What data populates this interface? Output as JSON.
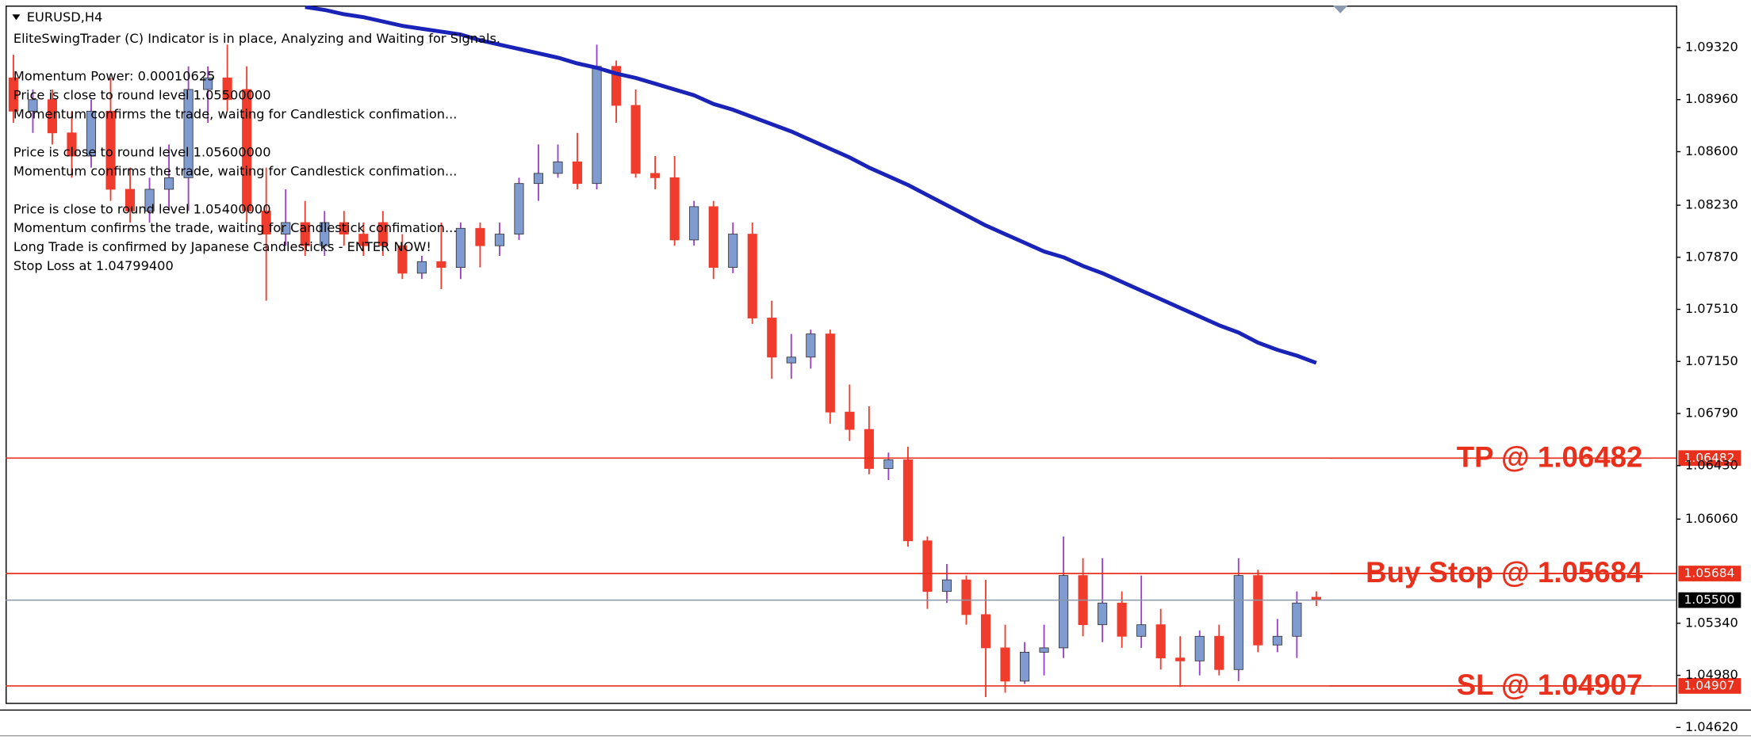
{
  "chart_data": {
    "type": "candlestick",
    "symbol": "EURUSD,H4",
    "comments": [
      [
        "EliteSwingTrader (C) Indicator is in place, Analyzing and Waiting for Signals."
      ],
      [
        "Momentum Power: 0.00010625",
        "Price is close to round level 1.05500000",
        "Momentum confirms the trade, waiting for Candlestick confimation..."
      ],
      [
        "Price is close to round level 1.05600000",
        "Momentum confirms the trade, waiting for Candlestick confimation..."
      ],
      [
        "Price is close to round level 1.05400000",
        "Momentum confirms the trade, waiting for Candlestick confimation...",
        "Long Trade is confirmed by Japanese Candlesticks - ENTER NOW!",
        "Stop Loss at 1.04799400"
      ]
    ],
    "ylim": [
      1.0479,
      1.0961
    ],
    "yticks": [
      {
        "value": 1.0932,
        "label": "1.09320"
      },
      {
        "value": 1.0896,
        "label": "1.08960"
      },
      {
        "value": 1.086,
        "label": "1.08600"
      },
      {
        "value": 1.0823,
        "label": "1.08230"
      },
      {
        "value": 1.0787,
        "label": "1.07870"
      },
      {
        "value": 1.0751,
        "label": "1.07510"
      },
      {
        "value": 1.0715,
        "label": "1.07150"
      },
      {
        "value": 1.0679,
        "label": "1.06790"
      },
      {
        "value": 1.0643,
        "label": "1.06430"
      },
      {
        "value": 1.0606,
        "label": "1.06060"
      },
      {
        "value": 1.0534,
        "label": "1.05340"
      },
      {
        "value": 1.0498,
        "label": "1.04980"
      },
      {
        "value": 1.0462,
        "label": "1.04620"
      }
    ],
    "up_color": "#7f9bd0",
    "down_color": "#f03c2c",
    "open": [
      1.0911,
      1.0888,
      1.0896,
      1.0873,
      1.0857,
      1.0888,
      1.0834,
      1.0819,
      1.0834,
      1.0842,
      1.0903,
      1.0911,
      1.0903,
      1.0819,
      1.0803,
      1.0811,
      1.0795,
      1.0811,
      1.0803,
      1.0811,
      1.0795,
      1.0776,
      1.0784,
      1.078,
      1.0807,
      1.0795,
      1.0803,
      1.0838,
      1.0845,
      1.0853,
      1.0838,
      1.0919,
      1.0892,
      1.0845,
      1.0842,
      1.0799,
      1.0822,
      1.078,
      1.0803,
      1.0745,
      1.0714,
      1.0718,
      1.0734,
      1.068,
      1.0668,
      1.0641,
      1.0647,
      1.0591,
      1.0556,
      1.0564,
      1.054,
      1.0517,
      1.0494,
      1.0514,
      1.0517,
      1.0567,
      1.0533,
      1.0548,
      1.0525,
      1.0533,
      1.051,
      1.0508,
      1.0525,
      1.0502,
      1.0567,
      1.0519,
      1.0525,
      1.0552
    ],
    "high": [
      1.0927,
      1.0903,
      1.0903,
      1.0888,
      1.0896,
      1.0911,
      1.0849,
      1.0842,
      1.0865,
      1.0919,
      1.0919,
      1.0934,
      1.0919,
      1.0849,
      1.0834,
      1.0826,
      1.0819,
      1.0819,
      1.0811,
      1.0819,
      1.0803,
      1.0788,
      1.0811,
      1.0811,
      1.0811,
      1.0811,
      1.0842,
      1.0865,
      1.0865,
      1.0873,
      1.0934,
      1.0923,
      1.0903,
      1.0857,
      1.0857,
      1.0826,
      1.0826,
      1.0811,
      1.0811,
      1.0757,
      1.0734,
      1.0737,
      1.0737,
      1.0699,
      1.0684,
      1.0652,
      1.0656,
      1.0594,
      1.0575,
      1.0567,
      1.0564,
      1.0533,
      1.0521,
      1.0533,
      1.0594,
      1.0579,
      1.0579,
      1.0556,
      1.0567,
      1.0544,
      1.0525,
      1.0529,
      1.0533,
      1.0579,
      1.0571,
      1.0537,
      1.0556,
      1.0556
    ],
    "low": [
      1.088,
      1.0873,
      1.0865,
      1.0842,
      1.0849,
      1.0826,
      1.0811,
      1.0811,
      1.0819,
      1.0819,
      1.088,
      1.0888,
      1.0811,
      1.0757,
      1.0795,
      1.0788,
      1.0788,
      1.0795,
      1.0788,
      1.0788,
      1.0772,
      1.0772,
      1.0765,
      1.0772,
      1.078,
      1.0788,
      1.0799,
      1.0826,
      1.0842,
      1.0834,
      1.0834,
      1.088,
      1.0842,
      1.0834,
      1.0795,
      1.0795,
      1.0772,
      1.0776,
      1.0741,
      1.0703,
      1.0703,
      1.071,
      1.0672,
      1.066,
      1.0637,
      1.0633,
      1.0587,
      1.0544,
      1.0548,
      1.0533,
      1.0483,
      1.0486,
      1.0492,
      1.0498,
      1.051,
      1.0525,
      1.0521,
      1.0517,
      1.0517,
      1.0502,
      1.049,
      1.0498,
      1.0498,
      1.0494,
      1.0514,
      1.0514,
      1.051,
      1.0546
    ],
    "close": [
      1.0888,
      1.0896,
      1.0873,
      1.0857,
      1.0888,
      1.0834,
      1.0819,
      1.0834,
      1.0842,
      1.0903,
      1.0911,
      1.0896,
      1.0819,
      1.0803,
      1.0811,
      1.0795,
      1.0811,
      1.0803,
      1.0795,
      1.0795,
      1.0776,
      1.0784,
      1.078,
      1.0807,
      1.0795,
      1.0803,
      1.0838,
      1.0845,
      1.0853,
      1.0838,
      1.0919,
      1.0892,
      1.0845,
      1.0842,
      1.0799,
      1.0822,
      1.078,
      1.0803,
      1.0745,
      1.0718,
      1.0718,
      1.0734,
      1.068,
      1.0668,
      1.0641,
      1.0647,
      1.0591,
      1.0556,
      1.0564,
      1.054,
      1.0517,
      1.0494,
      1.0514,
      1.0517,
      1.0567,
      1.0533,
      1.0548,
      1.0525,
      1.0533,
      1.051,
      1.0508,
      1.0525,
      1.0502,
      1.0567,
      1.0519,
      1.0525,
      1.0548,
      1.055
    ],
    "moving_average": {
      "color": "#1a23b8",
      "values": [
        null,
        null,
        null,
        null,
        null,
        null,
        null,
        null,
        null,
        null,
        null,
        null,
        null,
        null,
        null,
        1.096,
        1.0958,
        1.0955,
        1.0953,
        1.095,
        1.0947,
        1.0945,
        1.0943,
        1.0941,
        1.0937,
        1.0934,
        1.0931,
        1.0928,
        1.0925,
        1.0921,
        1.0918,
        1.0914,
        1.0911,
        1.0907,
        1.0903,
        1.0899,
        1.0893,
        1.0889,
        1.0884,
        1.0879,
        1.0874,
        1.0868,
        1.0862,
        1.0856,
        1.0849,
        1.0843,
        1.0837,
        1.083,
        1.0823,
        1.0816,
        1.0809,
        1.0803,
        1.0797,
        1.0791,
        1.0787,
        1.0781,
        1.0776,
        1.077,
        1.0764,
        1.0758,
        1.0752,
        1.0746,
        1.074,
        1.0735,
        1.0728,
        1.0723,
        1.0719,
        1.0714
      ]
    },
    "levels": [
      {
        "name": "TP @ 1.06482",
        "value": 1.06482,
        "value_label": "1.06482",
        "color": "#e8301c"
      },
      {
        "name": "Buy Stop @ 1.05684",
        "value": 1.05684,
        "value_label": "1.05684",
        "color": "#e8301c"
      },
      {
        "name": "SL @ 1.04907",
        "value": 1.04907,
        "value_label": "1.04907",
        "color": "#e8301c"
      }
    ],
    "current_price": {
      "value": 1.055,
      "value_label": "1.05500",
      "color": "#8796a6"
    }
  }
}
